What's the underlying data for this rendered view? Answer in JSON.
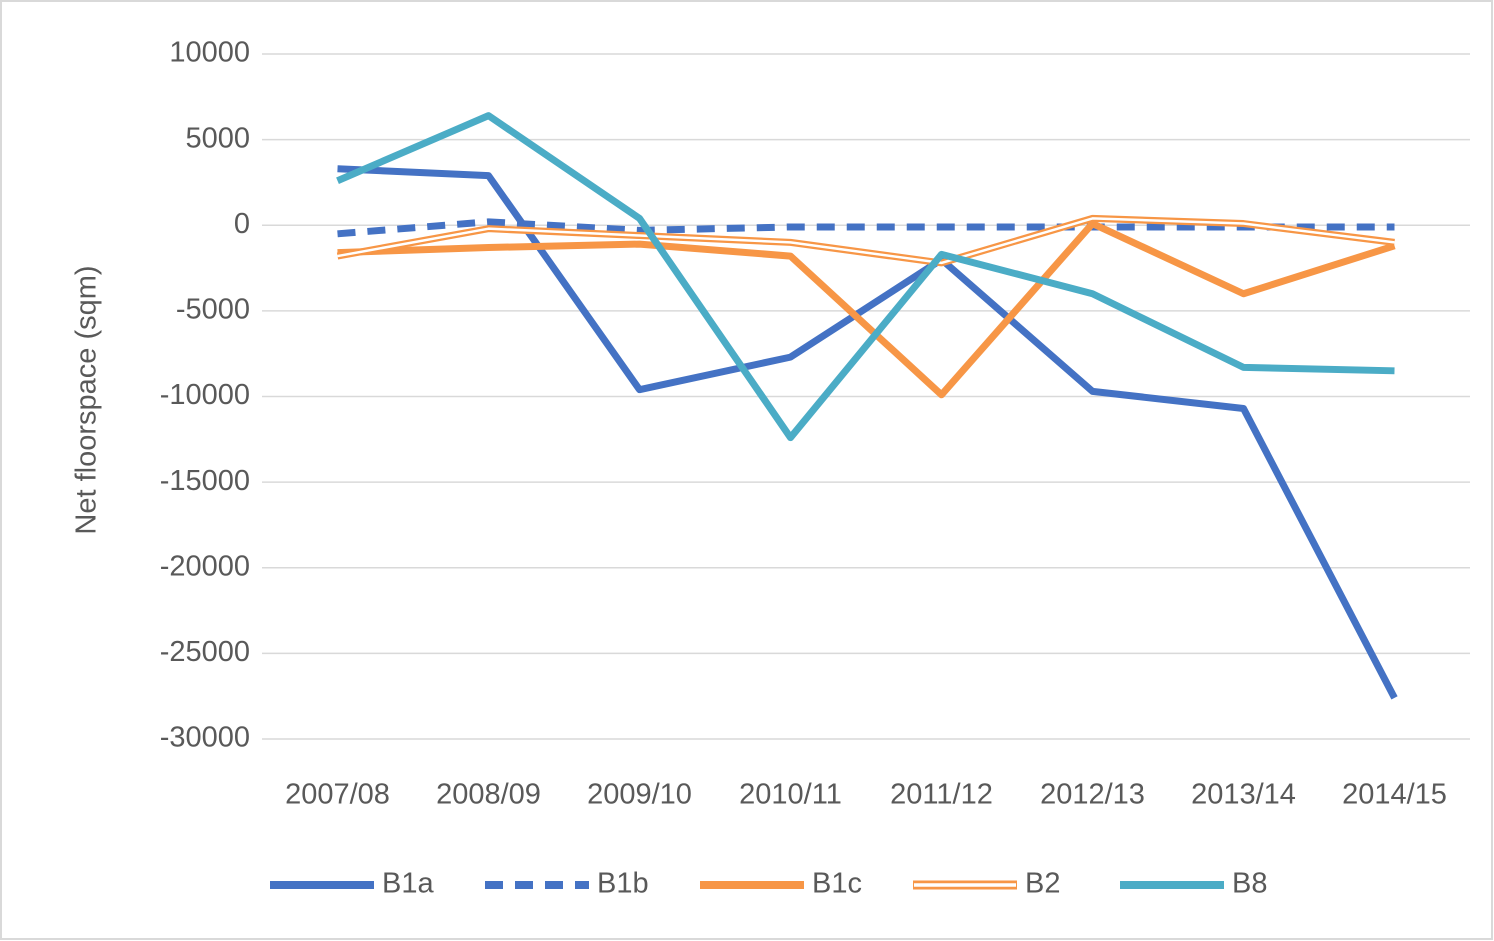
{
  "chart_data": {
    "type": "line",
    "y_label": "Net floorspace (sqm)",
    "categories": [
      "2007/08",
      "2008/09",
      "2009/10",
      "2010/11",
      "2011/12",
      "2012/13",
      "2013/14",
      "2014/15"
    ],
    "series": [
      {
        "name": "B1a",
        "color": "#4472c4",
        "style": "solid",
        "values": [
          3300,
          2900,
          -9600,
          -7700,
          -2000,
          -9700,
          -10700,
          -27600
        ]
      },
      {
        "name": "B1b",
        "color": "#4472c4",
        "style": "dashed",
        "values": [
          -500,
          200,
          -300,
          -100,
          -100,
          -100,
          -100,
          -100
        ]
      },
      {
        "name": "B1c",
        "color": "#f79646",
        "style": "solid",
        "values": [
          -1600,
          -1300,
          -1100,
          -1800,
          -9900,
          100,
          -4000,
          -1200
        ]
      },
      {
        "name": "B2",
        "color": "#f79646",
        "style": "double",
        "values": [
          -1800,
          -200,
          -600,
          -1000,
          -2200,
          400,
          100,
          -1000
        ]
      },
      {
        "name": "B8",
        "color": "#4bacc6",
        "style": "solid",
        "values": [
          2600,
          6400,
          400,
          -12400,
          -1700,
          -4000,
          -8300,
          -8500
        ]
      }
    ],
    "ylim": [
      -30000,
      10000
    ],
    "yticks": [
      -30000,
      -25000,
      -20000,
      -15000,
      -10000,
      -5000,
      0,
      5000,
      10000
    ],
    "grid": true,
    "legend": "bottom"
  }
}
